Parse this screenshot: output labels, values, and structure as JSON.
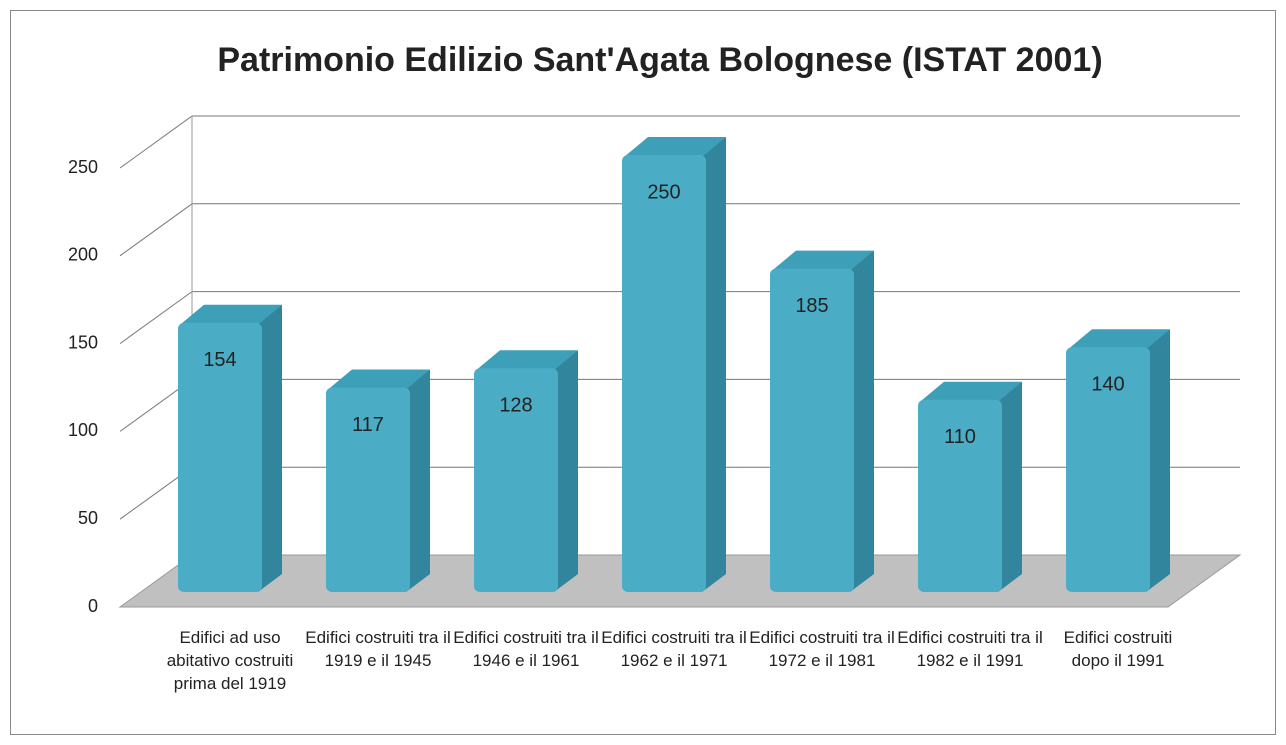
{
  "chart_data": {
    "type": "bar",
    "title": "Patrimonio Edilizio Sant'Agata Bolognese (ISTAT 2001)",
    "categories": [
      "Edifici ad uso abitativo costruiti prima del 1919",
      "Edifici costruiti tra il 1919 e il 1945",
      "Edifici costruiti tra il 1946 e il 1961",
      "Edifici costruiti tra il 1962 e il 1971",
      "Edifici costruiti tra il 1972 e il 1981",
      "Edifici costruiti tra il 1982 e il 1991",
      "Edifici costruiti dopo il 1991"
    ],
    "values": [
      154,
      117,
      128,
      250,
      185,
      110,
      140
    ],
    "color": "#4bacc6",
    "ylim": [
      0,
      250
    ],
    "yticks": [
      0,
      50,
      100,
      150,
      200,
      250
    ],
    "grid": true
  }
}
